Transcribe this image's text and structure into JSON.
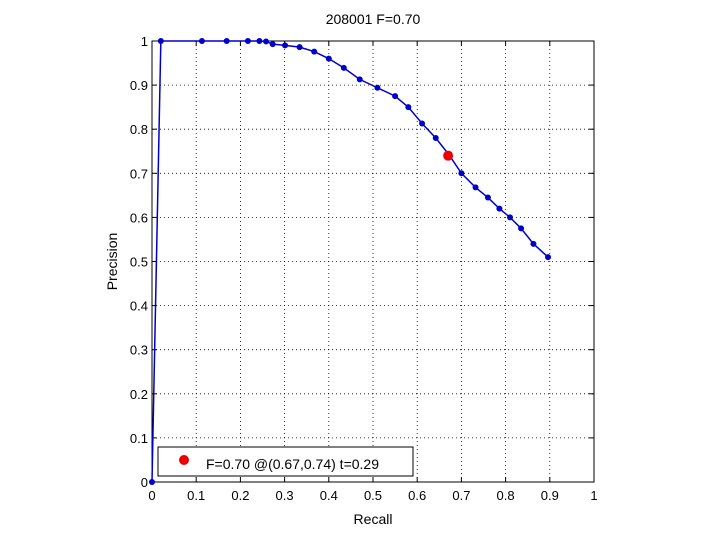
{
  "chart_data": {
    "type": "line",
    "title": "208001 F=0.70",
    "xlabel": "Recall",
    "ylabel": "Precision",
    "xlim": [
      0,
      1
    ],
    "ylim": [
      0,
      1
    ],
    "grid": true,
    "x_ticks": [
      0,
      0.1,
      0.2,
      0.3,
      0.4,
      0.5,
      0.6,
      0.7,
      0.8,
      0.9,
      1
    ],
    "y_ticks": [
      0,
      0.1,
      0.2,
      0.3,
      0.4,
      0.5,
      0.6,
      0.7,
      0.8,
      0.9,
      1
    ],
    "x_tick_labels": [
      "0",
      "0.1",
      "0.2",
      "0.3",
      "0.4",
      "0.5",
      "0.6",
      "0.7",
      "0.8",
      "0.9",
      "1"
    ],
    "y_tick_labels": [
      "0",
      "0.1",
      "0.2",
      "0.3",
      "0.4",
      "0.5",
      "0.6",
      "0.7",
      "0.8",
      "0.9",
      "1"
    ],
    "series": [
      {
        "color": "#0000cc",
        "points": [
          [
            0.0,
            0.0
          ],
          [
            0.02,
            1.0
          ],
          [
            0.113,
            1.0
          ],
          [
            0.169,
            1.0
          ],
          [
            0.217,
            1.0
          ],
          [
            0.243,
            1.0
          ],
          [
            0.258,
            0.999
          ],
          [
            0.273,
            0.993
          ],
          [
            0.301,
            0.99
          ],
          [
            0.334,
            0.986
          ],
          [
            0.367,
            0.976
          ],
          [
            0.4,
            0.96
          ],
          [
            0.434,
            0.939
          ],
          [
            0.47,
            0.913
          ],
          [
            0.51,
            0.894
          ],
          [
            0.55,
            0.875
          ],
          [
            0.58,
            0.85
          ],
          [
            0.611,
            0.813
          ],
          [
            0.642,
            0.78
          ],
          [
            0.672,
            0.742
          ],
          [
            0.7,
            0.7
          ],
          [
            0.732,
            0.668
          ],
          [
            0.76,
            0.645
          ],
          [
            0.786,
            0.62
          ],
          [
            0.81,
            0.6
          ],
          [
            0.835,
            0.575
          ],
          [
            0.863,
            0.54
          ],
          [
            0.896,
            0.51
          ]
        ]
      }
    ],
    "highlight": {
      "x": 0.67,
      "y": 0.74,
      "color": "#ee0000"
    },
    "legend": {
      "label": "F=0.70 @(0.67,0.74) t=0.29",
      "position": "bottom-left",
      "color": "#ee0000"
    }
  }
}
